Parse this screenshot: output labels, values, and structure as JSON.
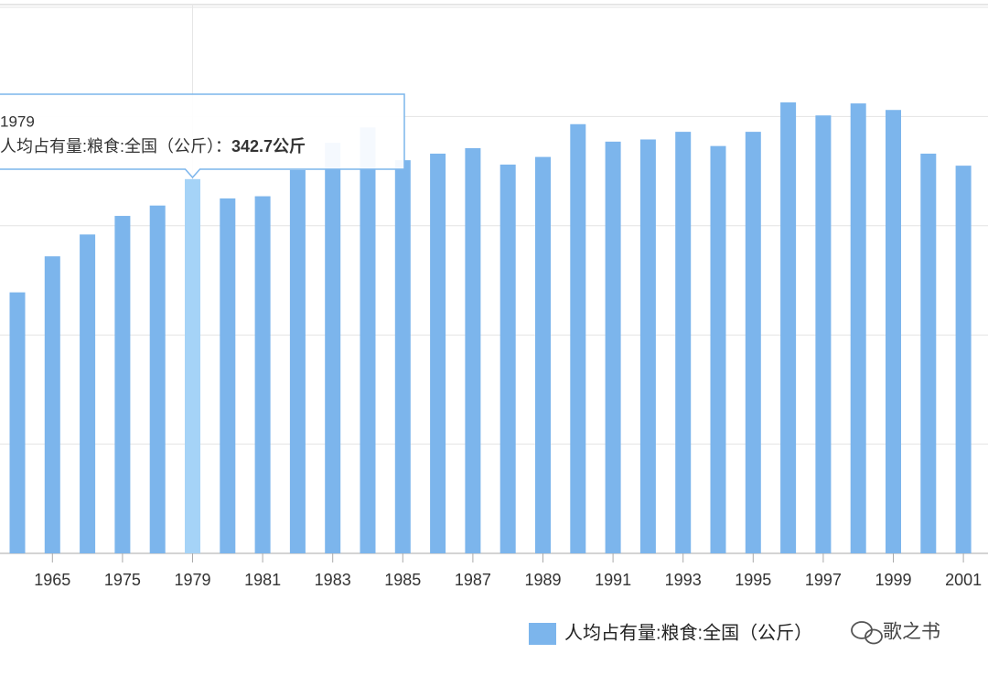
{
  "chart_data": {
    "type": "bar",
    "categories": [
      null,
      "1965",
      null,
      "1975",
      null,
      "1979",
      null,
      "1981",
      null,
      "1983",
      null,
      "1985",
      null,
      "1987",
      null,
      "1989",
      null,
      "1991",
      null,
      "1993",
      null,
      "1995",
      null,
      "1997",
      null,
      "1999",
      null,
      "2001"
    ],
    "series": [
      {
        "name": "人均占有量:粮食:全国（公斤）",
        "color": "#7cb5ec",
        "highlight_color": "#a5d3f7",
        "values": [
          239,
          272,
          292,
          309,
          318.5,
          342.7,
          325,
          327,
          351,
          376,
          390,
          360,
          366,
          371,
          356,
          363,
          393,
          377,
          379,
          386,
          373,
          386,
          413,
          401,
          412,
          406,
          366,
          355
        ]
      }
    ],
    "ylim": [
      0,
      500
    ],
    "yticks": [
      0,
      100,
      200,
      300,
      400,
      500
    ],
    "grid": true,
    "tooltip": {
      "title": "1979",
      "label": "人均占有量:粮食:全国（公斤）：",
      "value_label": "342.7公斤"
    },
    "watermark": "歌之书"
  }
}
